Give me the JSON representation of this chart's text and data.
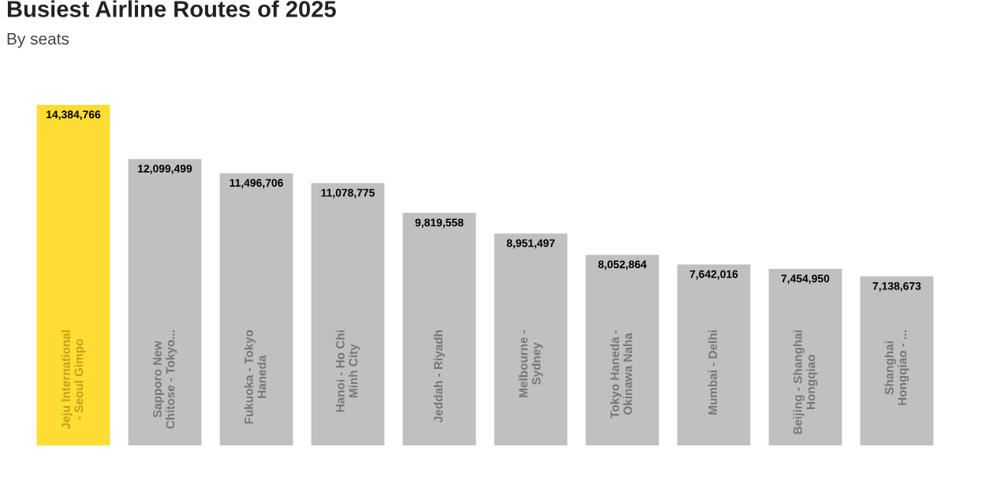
{
  "chart_data": {
    "type": "bar",
    "title": "Busiest Airline Routes of 2025",
    "subtitle": "By seats",
    "categories": [
      "Jeju International\n- Seoul Gimpo",
      "Sapporo New\nChitose - Tokyo...",
      "Fukuoka - Tokyo\nHaneda",
      "Hanoi - Ho Chi\nMinh City",
      "Jeddah - Riyadh",
      "Melbourne -\nSydney",
      "Tokyo Haneda -\nOkinawa Naha",
      "Mumbai - Delhi",
      "Beijing - Shanghai\nHongqiao",
      "Shanghai\nHongqiao - ..."
    ],
    "values": [
      14384766,
      12099499,
      11496706,
      11078775,
      9819558,
      8951497,
      8052864,
      7642016,
      7454950,
      7138673
    ],
    "colors": [
      "#ffdd33",
      "#c0c0c0",
      "#c0c0c0",
      "#c0c0c0",
      "#c0c0c0",
      "#c0c0c0",
      "#c0c0c0",
      "#c0c0c0",
      "#c0c0c0",
      "#c0c0c0"
    ],
    "value_labels": [
      "14,384,766",
      "12,099,499",
      "11,496,706",
      "11,078,775",
      "9,819,558",
      "8,951,497",
      "8,052,864",
      "7,642,016",
      "7,454,950",
      "7,138,673"
    ]
  }
}
